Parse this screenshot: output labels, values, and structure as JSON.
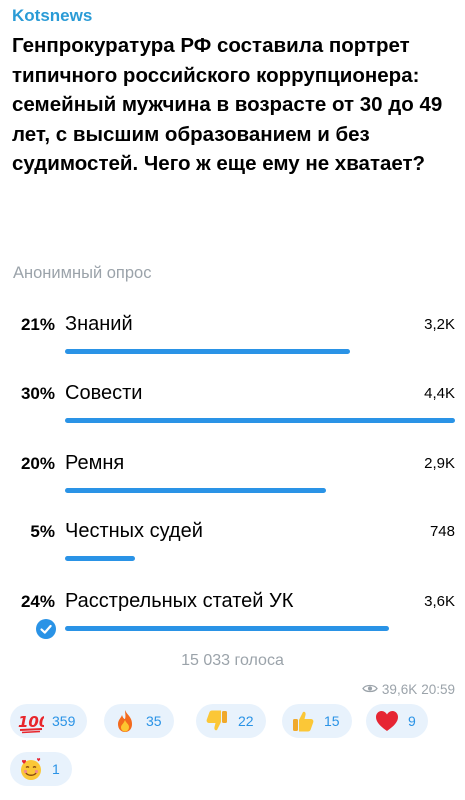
{
  "post": {
    "channel": "Kotsnews",
    "text": "Генпрокуратура РФ составила портрет типичного российского коррупционера: семейный мужчина в возрасте от 30 до 49 лет, с высшим образованием и без судимостей. Чего ж еще ему не хватает?"
  },
  "poll": {
    "type_label": "Анонимный опрос",
    "options": [
      {
        "percent": "21%",
        "label": "Знаний",
        "count": "3,2K",
        "fill": 0.73
      },
      {
        "percent": "30%",
        "label": "Совести",
        "count": "4,4K",
        "fill": 1.0
      },
      {
        "percent": "20%",
        "label": "Ремня",
        "count": "2,9K",
        "fill": 0.67
      },
      {
        "percent": "5%",
        "label": "Честных судей",
        "count": "748",
        "fill": 0.18
      },
      {
        "percent": "24%",
        "label": "Расстрельных статей УК",
        "count": "3,6K",
        "fill": 0.83,
        "chosen": true
      }
    ],
    "total": "15 033 голоса"
  },
  "meta": {
    "views": "39,6K",
    "time": "20:59"
  },
  "reactions": [
    {
      "icon": "hundred-points-icon",
      "count": "359"
    },
    {
      "icon": "fire-icon",
      "count": "35"
    },
    {
      "icon": "thumbs-down-icon",
      "count": "22"
    },
    {
      "icon": "thumbs-up-icon",
      "count": "15"
    },
    {
      "icon": "red-heart-icon",
      "count": "9"
    },
    {
      "icon": "smiling-face-with-hearts-icon",
      "count": "1"
    }
  ],
  "colors": {
    "accent": "#2a93e6",
    "channel": "#2a9bd6",
    "muted": "#9ba3aa",
    "reaction_bg": "#e8f2fc"
  }
}
